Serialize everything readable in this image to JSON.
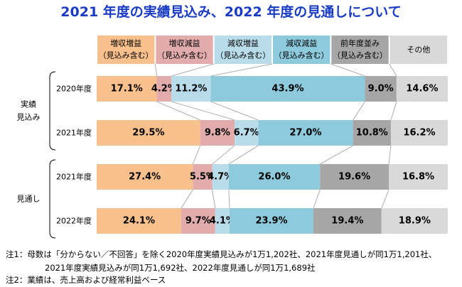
{
  "title": "2021 年度の実績見込み、2022 年度の見通しについて",
  "chart_data": {
    "type": "bar",
    "stacked": true,
    "orientation": "horizontal",
    "normalized_percent": true,
    "legend": [
      {
        "line1": "増収増益",
        "line2": "（見込み含む）",
        "color": "#f8c08c"
      },
      {
        "line1": "増収減益",
        "line2": "（見込み含む）",
        "color": "#e3acac"
      },
      {
        "line1": "減収増益",
        "line2": "（見込み含む）",
        "color": "#b8dcea"
      },
      {
        "line1": "減収減益",
        "line2": "（見込み含む）",
        "color": "#8ccadc"
      },
      {
        "line1": "前年度並み",
        "line2": "（見込み含む）",
        "color": "#a6a6a6"
      },
      {
        "line1": "その他",
        "line2": "",
        "color": "#d9d9d9"
      }
    ],
    "groups": [
      {
        "label_line1": "実績",
        "label_line2": "見込み",
        "rows": [
          0,
          1
        ]
      },
      {
        "label_line1": "見通し",
        "label_line2": "",
        "rows": [
          2,
          3
        ]
      }
    ],
    "categories": [
      "2020年度",
      "2021年度",
      "2021年度",
      "2022年度"
    ],
    "series": [
      {
        "name": "増収増益",
        "values": [
          17.1,
          29.5,
          27.4,
          24.1
        ]
      },
      {
        "name": "増収減益",
        "values": [
          4.2,
          9.8,
          5.5,
          9.7
        ]
      },
      {
        "name": "減収増益",
        "values": [
          11.2,
          6.7,
          4.7,
          4.1
        ]
      },
      {
        "name": "減収減益",
        "values": [
          43.9,
          27.0,
          26.0,
          23.9
        ]
      },
      {
        "name": "前年度並み",
        "values": [
          9.0,
          10.8,
          19.6,
          19.4
        ]
      },
      {
        "name": "その他",
        "values": [
          14.6,
          16.2,
          16.8,
          18.9
        ]
      }
    ],
    "labels": [
      [
        "17.1%",
        "4.2%",
        "11.2%",
        "43.9%",
        "9.0%",
        "14.6%"
      ],
      [
        "29.5%",
        "9.8%",
        "6.7%",
        "27.0%",
        "10.8%",
        "16.2%"
      ],
      [
        "27.4%",
        "5.5%",
        "4.7%",
        "26.0%",
        "19.6%",
        "16.8%"
      ],
      [
        "24.1%",
        "9.7%",
        "4.1%",
        "23.9%",
        "19.4%",
        "18.9%"
      ]
    ]
  },
  "notes": [
    "注1：母数は「分からない／不回答」を除く2020年度実績見込みが1万1,202社、2021年度見通しが同1万1,201社、",
    "2021年度実績見込みが同1万1,692社、2022年度見通しが同1万1,689社",
    "注2：業績は、売上高および経常利益ベース"
  ]
}
